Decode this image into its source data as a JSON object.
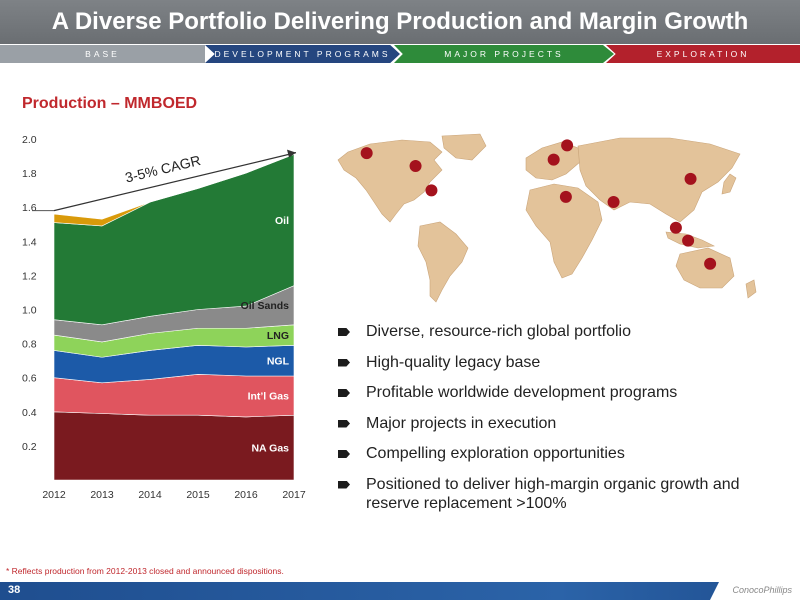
{
  "header": {
    "title": "A Diverse Portfolio Delivering Production and Margin Growth"
  },
  "phases": [
    "BASE",
    "DEVELOPMENT PROGRAMS",
    "MAJOR PROJECTS",
    "EXPLORATION"
  ],
  "chart_data": {
    "type": "area",
    "stacked": true,
    "title": "Production – MMBOED",
    "x": [
      "2012",
      "2013",
      "2014",
      "2015",
      "2016",
      "2017"
    ],
    "ylim": [
      0,
      2.0
    ],
    "y_ticks": [
      "2.0",
      "1.8",
      "1.6",
      "1.4",
      "1.2",
      "1.0",
      "0.8",
      "0.6",
      "0.4",
      "0.2"
    ],
    "series": [
      {
        "name": "NA Gas",
        "color": "#7a1a1f",
        "values": [
          0.4,
          0.39,
          0.38,
          0.38,
          0.37,
          0.38
        ]
      },
      {
        "name": "Int’l Gas",
        "color": "#e0555f",
        "values": [
          0.2,
          0.18,
          0.21,
          0.24,
          0.24,
          0.23
        ]
      },
      {
        "name": "NGL",
        "color": "#1c5aa8",
        "values": [
          0.16,
          0.15,
          0.17,
          0.17,
          0.17,
          0.18
        ]
      },
      {
        "name": "LNG",
        "color": "#8ed35a",
        "values": [
          0.09,
          0.09,
          0.1,
          0.1,
          0.11,
          0.12
        ]
      },
      {
        "name": "Oil Sands",
        "color": "#8a8a8a",
        "values": [
          0.09,
          0.1,
          0.1,
          0.11,
          0.13,
          0.23
        ]
      },
      {
        "name": "Oil",
        "color": "#237a36",
        "values": [
          0.57,
          0.58,
          0.67,
          0.71,
          0.78,
          0.77
        ]
      },
      {
        "name": "*",
        "color": "#d99a0a",
        "values": [
          0.05,
          0.04,
          0.0,
          0.0,
          0.0,
          0.0
        ]
      }
    ],
    "annotation": "3-5% CAGR"
  },
  "bullets": [
    "Diverse, resource-rich global portfolio",
    "High-quality legacy base",
    "Profitable worldwide development programs",
    "Major projects in execution",
    "Compelling exploration opportunities",
    "Positioned to deliver high-margin organic growth and reserve replacement >100%"
  ],
  "map": {
    "land_color": "#e3c39a",
    "marker_color": "#a4121d",
    "markers": [
      {
        "lon": -150,
        "lat": 62
      },
      {
        "lon": -110,
        "lat": 52
      },
      {
        "lon": -97,
        "lat": 33
      },
      {
        "lon": 3,
        "lat": 57
      },
      {
        "lon": 14,
        "lat": 68
      },
      {
        "lon": 13,
        "lat": 28
      },
      {
        "lon": 52,
        "lat": 24
      },
      {
        "lon": 115,
        "lat": 42
      },
      {
        "lon": 103,
        "lat": 4
      },
      {
        "lon": 113,
        "lat": -6
      },
      {
        "lon": 131,
        "lat": -24
      }
    ]
  },
  "footnote": "* Reflects production from 2012-2013 closed and announced dispositions.",
  "footer": {
    "page_number": "38",
    "logo": "ConocoPhillips"
  }
}
